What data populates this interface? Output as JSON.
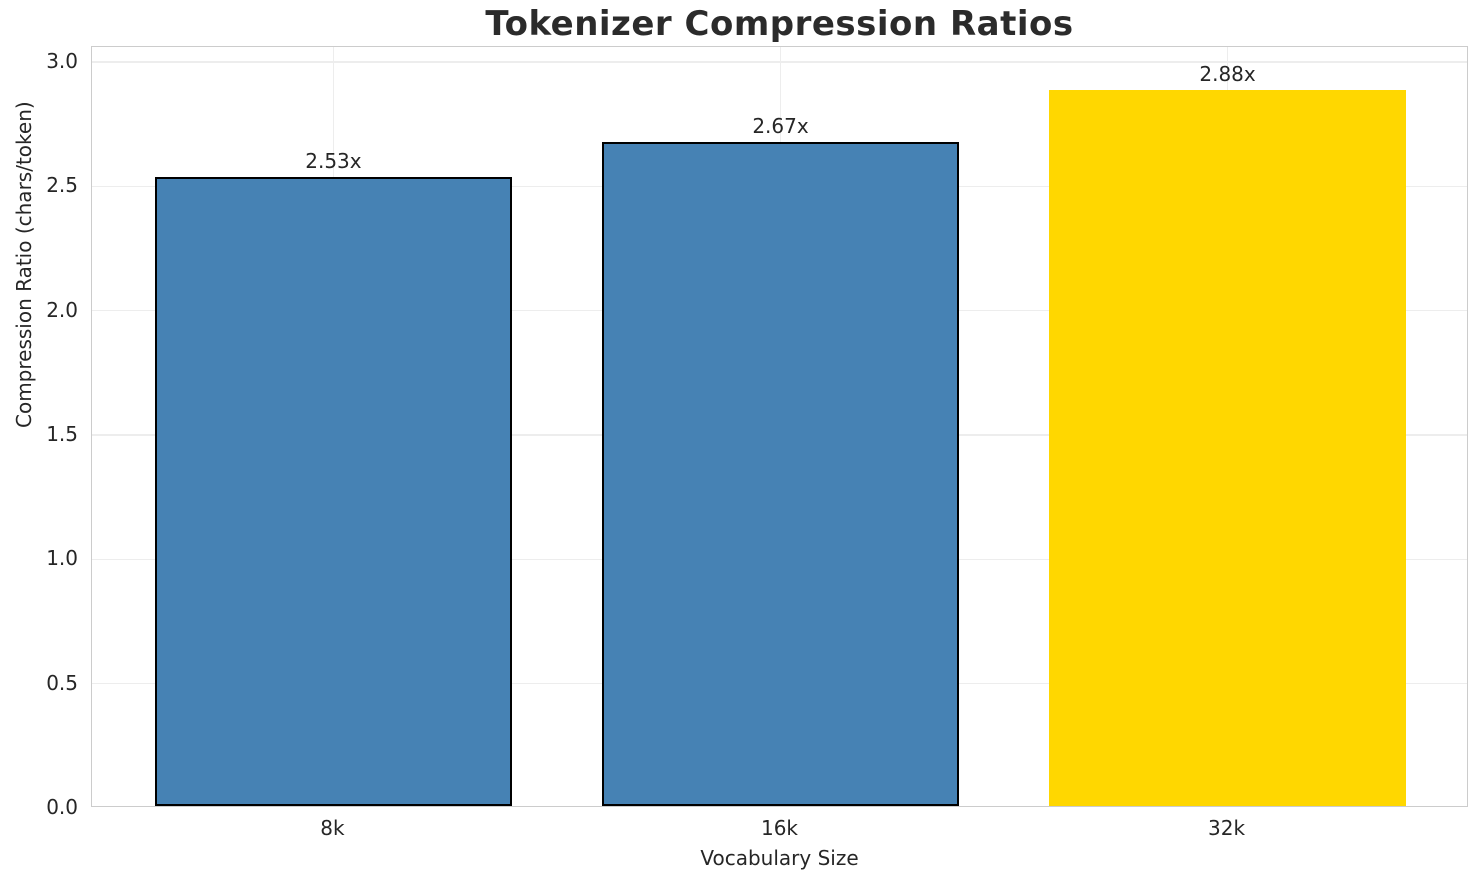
{
  "chart_data": {
    "type": "bar",
    "title": "Tokenizer Compression Ratios",
    "xlabel": "Vocabulary Size",
    "ylabel": "Compression Ratio (chars/token)",
    "categories": [
      "8k",
      "16k",
      "32k"
    ],
    "values": [
      2.53,
      2.67,
      2.88
    ],
    "value_labels": [
      "2.53x",
      "2.67x",
      "2.88x"
    ],
    "bar_colors": [
      "#4682B4",
      "#4682B4",
      "#FFD700"
    ],
    "bar_edge_colors": [
      "#000000",
      "#000000",
      "none"
    ],
    "ylim": [
      0,
      3.06
    ],
    "yticks": [
      0.0,
      0.5,
      1.0,
      1.5,
      2.0,
      2.5,
      3.0
    ],
    "ytick_labels": [
      "0.0",
      "0.5",
      "1.0",
      "1.5",
      "2.0",
      "2.5",
      "3.0"
    ],
    "grid": true,
    "grid_color": "#ededed",
    "spine_color": "#cccccc",
    "text_color": "#262626",
    "title_color": "#2b2b2b",
    "background": "#ffffff",
    "legend": null
  }
}
